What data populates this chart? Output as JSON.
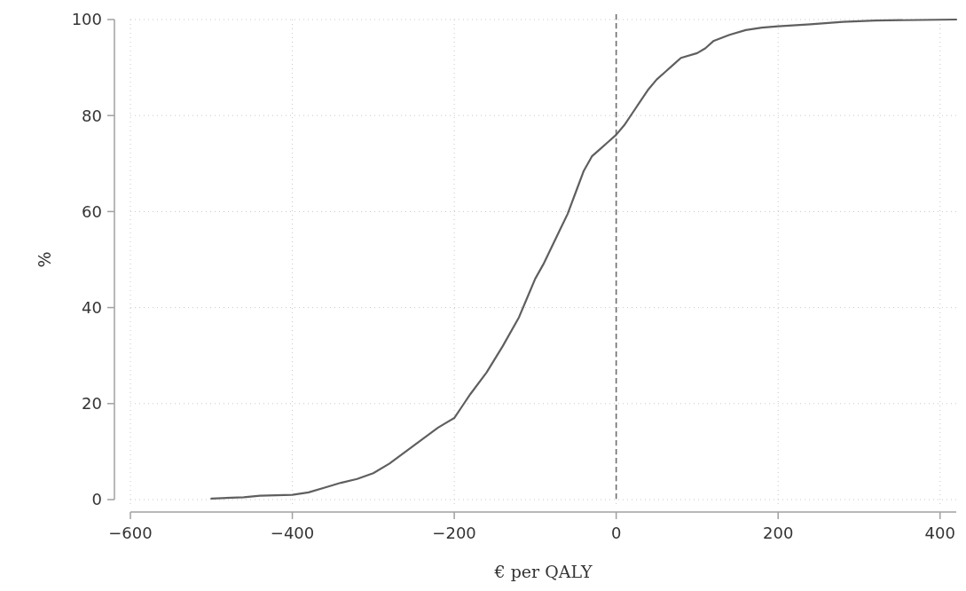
{
  "chart_data": {
    "type": "line",
    "xlabel": "€ per QALY",
    "ylabel": "%",
    "xlim": [
      -600,
      420
    ],
    "ylim": [
      0,
      100
    ],
    "xticks": [
      -600,
      -400,
      -200,
      0,
      200,
      400
    ],
    "yticks": [
      0,
      20,
      40,
      60,
      80,
      100
    ],
    "grid": true,
    "marker": "none",
    "line_style": "solid",
    "series": [
      {
        "color": "#5f5f5f",
        "x": [
          -500,
          -460,
          -440,
          -400,
          -380,
          -360,
          -340,
          -320,
          -300,
          -280,
          -260,
          -240,
          -220,
          -200,
          -190,
          -180,
          -160,
          -140,
          -120,
          -110,
          -100,
          -90,
          -80,
          -70,
          -60,
          -50,
          -40,
          -30,
          -20,
          -10,
          0,
          10,
          20,
          30,
          40,
          50,
          60,
          70,
          80,
          100,
          110,
          120,
          140,
          160,
          180,
          200,
          240,
          280,
          320,
          420
        ],
        "values": [
          0.2,
          0.5,
          0.8,
          1.0,
          1.5,
          2.5,
          3.5,
          4.3,
          5.5,
          7.5,
          10,
          12.5,
          15,
          17,
          19.5,
          22,
          26.5,
          32,
          38,
          42,
          46,
          49,
          52.5,
          56,
          59.5,
          64,
          68.5,
          71.5,
          73,
          74.5,
          76,
          78,
          80.5,
          83,
          85.5,
          87.5,
          89,
          90.5,
          92,
          93,
          94,
          95.5,
          96.8,
          97.8,
          98.3,
          98.6,
          99,
          99.5,
          99.8,
          100
        ]
      }
    ],
    "ref_lines": [
      {
        "axis": "x",
        "value": 0,
        "color": "#6e6e6e",
        "line_style": "dashed"
      }
    ]
  }
}
